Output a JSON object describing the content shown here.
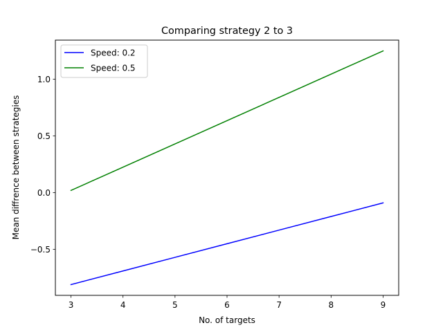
{
  "chart_data": {
    "type": "line",
    "title": "Comparing strategy 2 to 3",
    "xlabel": "No. of targets",
    "ylabel": "Mean diffrence between strategies",
    "x": [
      3,
      4,
      5,
      6,
      7,
      8,
      9
    ],
    "xlim": [
      2.7,
      9.3
    ],
    "ylim": [
      -0.905,
      1.345
    ],
    "xticks": [
      "3",
      "4",
      "5",
      "6",
      "7",
      "8",
      "9"
    ],
    "yticks": [
      "−0.5",
      "0.0",
      "0.5",
      "1.0"
    ],
    "ytick_values": [
      -0.5,
      0.0,
      0.5,
      1.0
    ],
    "grid": false,
    "legend_position": "upper-left",
    "series": [
      {
        "name": "Speed: 0.2",
        "color": "#0000ff",
        "values": [
          -0.81,
          -0.69,
          -0.57,
          -0.45,
          -0.33,
          -0.21,
          -0.09
        ]
      },
      {
        "name": "Speed: 0.5",
        "color": "#008000",
        "values": [
          0.02,
          0.225,
          0.43,
          0.635,
          0.84,
          1.045,
          1.25
        ]
      }
    ]
  }
}
